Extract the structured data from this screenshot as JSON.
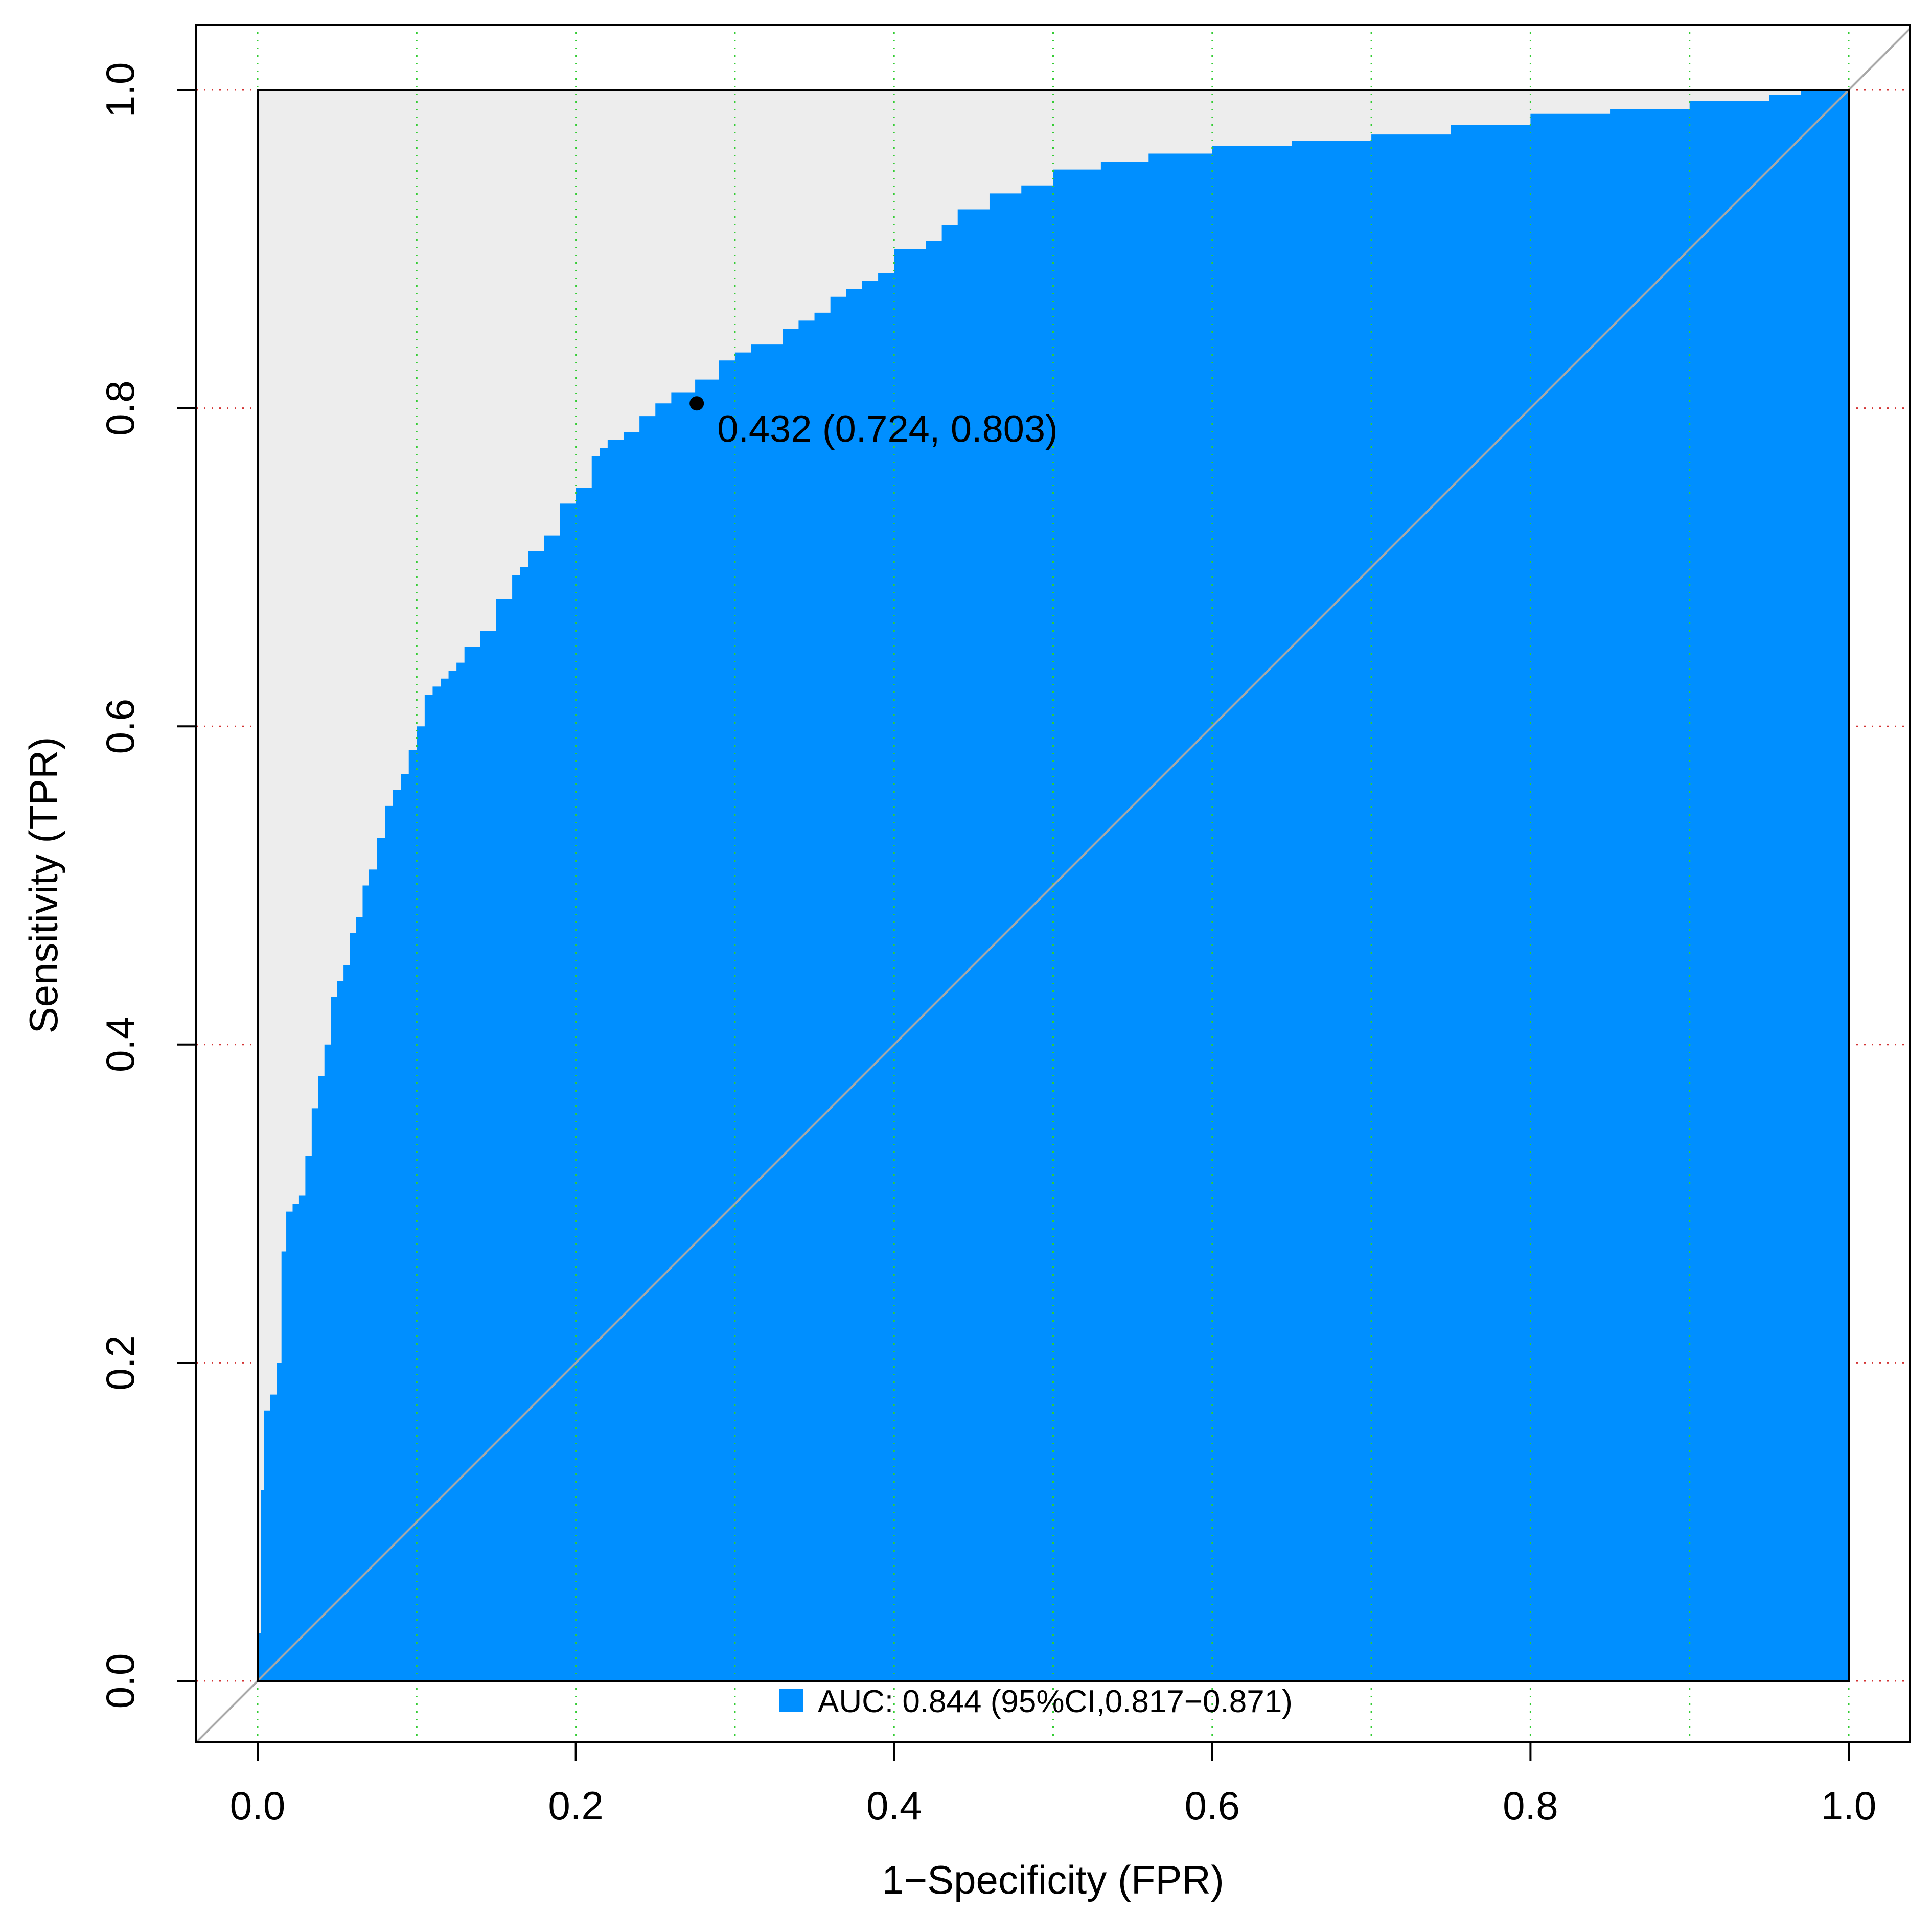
{
  "chart_data": {
    "type": "area",
    "title": "",
    "xlabel": "1−Specificity (FPR)",
    "ylabel": "Sensitivity (TPR)",
    "xlim": [
      0,
      1
    ],
    "ylim": [
      0,
      1
    ],
    "x_ticks": [
      0.0,
      0.2,
      0.4,
      0.6,
      0.8,
      1.0
    ],
    "x_tick_labels": [
      "0.0",
      "0.2",
      "0.4",
      "0.6",
      "0.8",
      "1.0"
    ],
    "y_ticks": [
      0.0,
      0.2,
      0.4,
      0.6,
      0.8,
      1.0
    ],
    "y_tick_labels": [
      "0.0",
      "0.2",
      "0.4",
      "0.6",
      "0.8",
      "1.0"
    ],
    "vertical_grid": [
      0.0,
      0.1,
      0.2,
      0.3,
      0.4,
      0.5,
      0.6,
      0.7,
      0.8,
      0.9,
      1.0
    ],
    "horizontal_grid": [
      0.0,
      0.2,
      0.4,
      0.6,
      0.8,
      1.0
    ],
    "roc_curve": {
      "fpr": [
        0,
        0,
        0.002,
        0.004,
        0.008,
        0.012,
        0.015,
        0.018,
        0.022,
        0.026,
        0.03,
        0.034,
        0.038,
        0.042,
        0.046,
        0.05,
        0.054,
        0.058,
        0.062,
        0.066,
        0.07,
        0.075,
        0.08,
        0.085,
        0.09,
        0.095,
        0.1,
        0.105,
        0.11,
        0.115,
        0.12,
        0.125,
        0.13,
        0.14,
        0.15,
        0.16,
        0.165,
        0.17,
        0.18,
        0.19,
        0.2,
        0.21,
        0.215,
        0.22,
        0.23,
        0.24,
        0.25,
        0.26,
        0.275,
        0.29,
        0.3,
        0.31,
        0.33,
        0.34,
        0.35,
        0.36,
        0.37,
        0.38,
        0.39,
        0.4,
        0.42,
        0.43,
        0.44,
        0.46,
        0.48,
        0.5,
        0.53,
        0.56,
        0.6,
        0.65,
        0.7,
        0.75,
        0.8,
        0.85,
        0.9,
        0.95,
        0.97,
        1.0
      ],
      "tpr": [
        0,
        0.03,
        0.12,
        0.17,
        0.18,
        0.2,
        0.27,
        0.295,
        0.3,
        0.305,
        0.33,
        0.36,
        0.38,
        0.4,
        0.43,
        0.44,
        0.45,
        0.47,
        0.48,
        0.5,
        0.51,
        0.53,
        0.55,
        0.56,
        0.57,
        0.585,
        0.6,
        0.62,
        0.625,
        0.63,
        0.635,
        0.64,
        0.65,
        0.66,
        0.68,
        0.695,
        0.7,
        0.71,
        0.72,
        0.74,
        0.75,
        0.77,
        0.775,
        0.78,
        0.785,
        0.795,
        0.803,
        0.81,
        0.818,
        0.83,
        0.835,
        0.84,
        0.85,
        0.855,
        0.86,
        0.87,
        0.875,
        0.88,
        0.885,
        0.9,
        0.905,
        0.915,
        0.925,
        0.935,
        0.94,
        0.95,
        0.955,
        0.96,
        0.965,
        0.968,
        0.972,
        0.978,
        0.985,
        0.988,
        0.993,
        0.997,
        1.0,
        1.0
      ]
    },
    "optimal_point": {
      "fpr": 0.276,
      "tpr": 0.803,
      "label": "0.432 (0.724, 0.803)"
    },
    "reference_line": "diagonal",
    "legend": {
      "position": "bottom-center",
      "label": "AUC: 0.844 (95%CI,0.817−0.871)"
    },
    "colors": {
      "fill": "#008FFF",
      "background_area": "#EDEDED",
      "diagonal": "#A8A8A8",
      "vertical_grid": "#33CC33",
      "horizontal_grid": "#D33333",
      "point": "#000000"
    }
  }
}
